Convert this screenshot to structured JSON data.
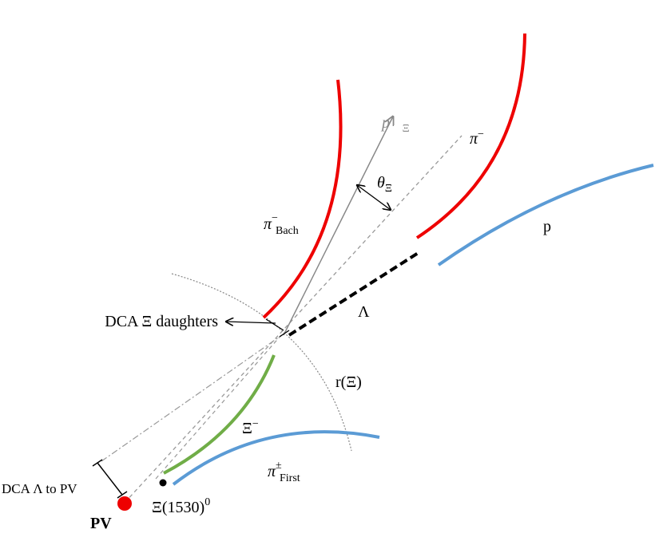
{
  "labels": {
    "p_xi": {
      "base": "p⃗",
      "sub": "Ξ"
    },
    "pi_minus": {
      "base": "π",
      "sup": "−"
    },
    "theta": {
      "base": "θ",
      "sub": "Ξ"
    },
    "pi_bach": {
      "base": "π",
      "sup": "−",
      "sub": "Bach"
    },
    "proton": "p",
    "lambda": "Λ",
    "dca_daughters": "DCA Ξ daughters",
    "r_xi": "r(Ξ)",
    "xi_minus": {
      "base": "Ξ",
      "sup": "−"
    },
    "pi_first": {
      "base": "π",
      "sup": "±",
      "sub": "First"
    },
    "dca_lambda_pv": "DCA Λ to PV",
    "pv": "PV",
    "xi1530": {
      "base": "Ξ(1530)",
      "sup": "0"
    }
  }
}
